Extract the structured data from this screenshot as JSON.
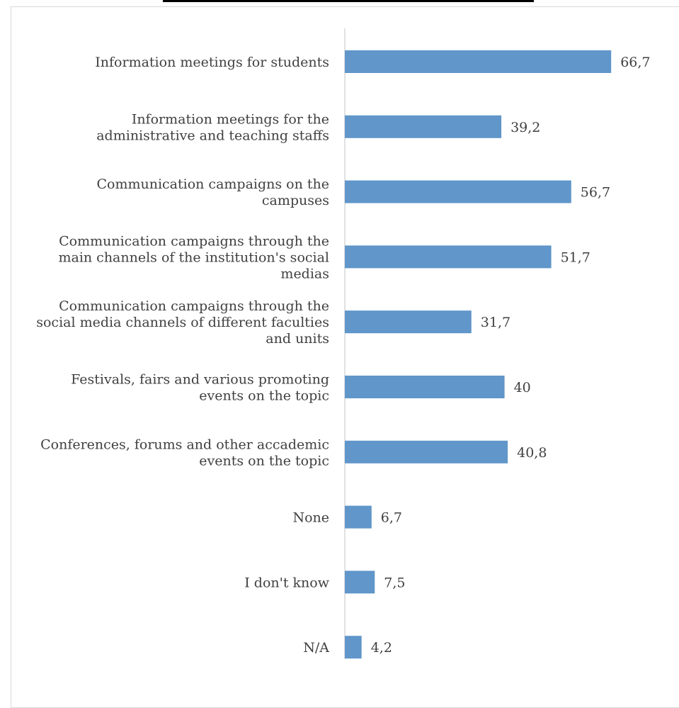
{
  "chart_data": {
    "type": "bar",
    "orientation": "horizontal",
    "categories": [
      [
        "Information meetings for students"
      ],
      [
        "Information meetings for the",
        "administrative and teaching staffs"
      ],
      [
        "Communication campaigns on the",
        "campuses"
      ],
      [
        "Communication campaigns through the",
        "main channels of the institution's social",
        "medias"
      ],
      [
        "Communication campaigns through the",
        "social media channels of different faculties",
        "and units"
      ],
      [
        "Festivals, fairs and various promoting",
        "events on the topic"
      ],
      [
        "Conferences, forums and other accademic",
        "events on the topic"
      ],
      [
        "None"
      ],
      [
        "I don't know"
      ],
      [
        "N/A"
      ]
    ],
    "values": [
      66.7,
      39.2,
      56.7,
      51.7,
      31.7,
      40,
      40.8,
      6.7,
      7.5,
      4.2
    ],
    "value_labels": [
      "66,7",
      "39,2",
      "56,7",
      "51,7",
      "31,7",
      "40",
      "40,8",
      "6,7",
      "7,5",
      "4,2"
    ],
    "xlim": [
      0,
      70
    ],
    "grid": false,
    "legend": "none",
    "bar_color": "#6096c9",
    "axis_color": "#d9d9d9"
  }
}
